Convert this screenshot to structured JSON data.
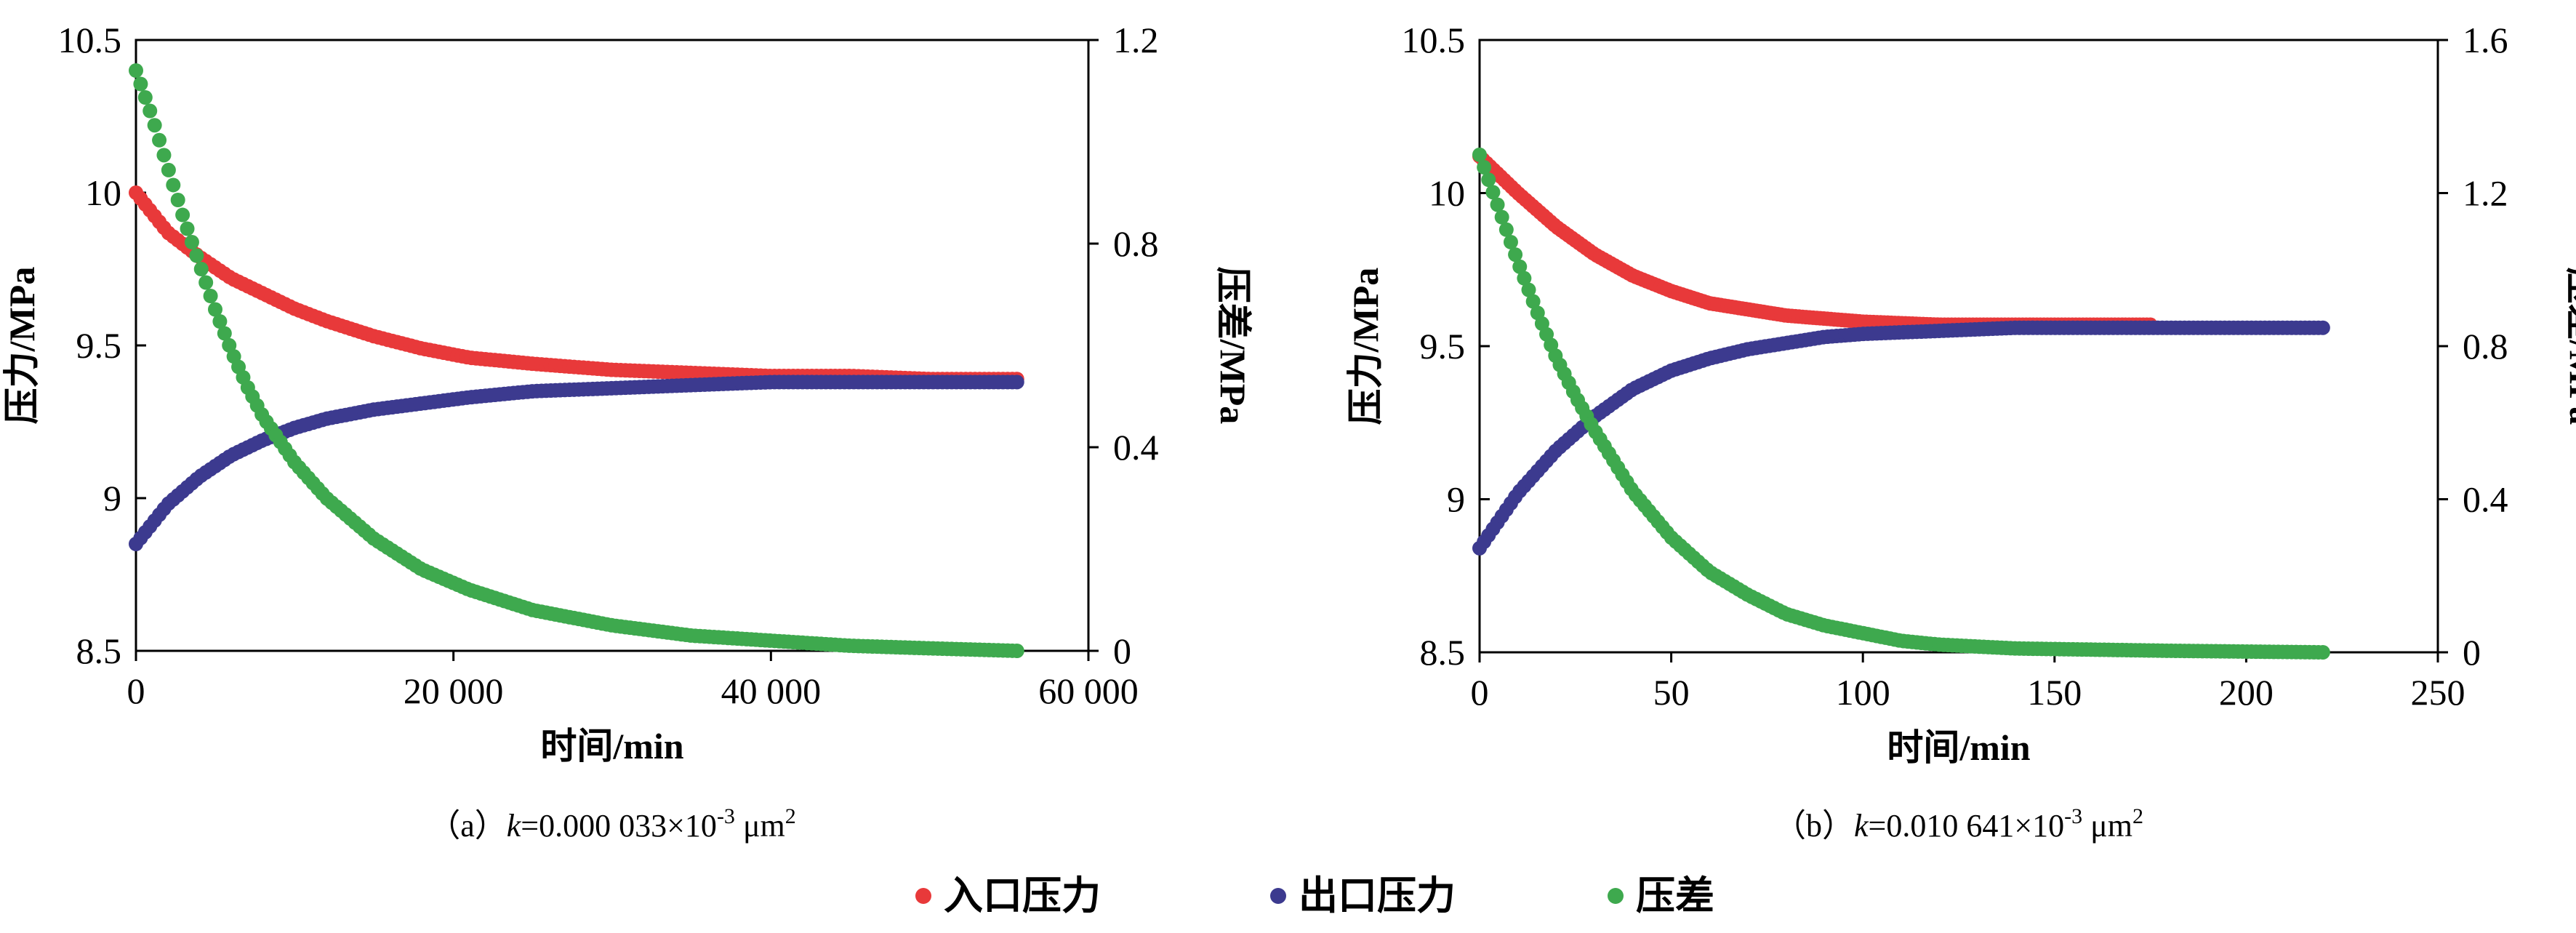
{
  "legend": [
    {
      "label": "入口压力",
      "color": "#E8393A"
    },
    {
      "label": "出口压力",
      "color": "#3C3A8F"
    },
    {
      "label": "压差",
      "color": "#3EA94E"
    }
  ],
  "chart_data": [
    {
      "type": "scatter",
      "caption": {
        "prefix": "（a）",
        "k": "k",
        "value": "=0.000 033×10",
        "exp": "-3",
        "unit": " μm",
        "unit_exp": "2"
      },
      "xlabel": "时间/min",
      "ylabel_left": "压力/MPa",
      "ylabel_right": "压差/MPa",
      "xlim": [
        0,
        60000
      ],
      "ylim_left": [
        8.5,
        10.5
      ],
      "ylim_right": [
        0,
        1.2
      ],
      "x_ticks": [
        0,
        20000,
        40000,
        60000
      ],
      "x_tick_labels": [
        "0",
        "20 000",
        "40 000",
        "60 000"
      ],
      "y_left_ticks": [
        8.5,
        9,
        9.5,
        10,
        10.5
      ],
      "y_left_tick_labels": [
        "8.5",
        "9",
        "9.5",
        "10",
        "10.5"
      ],
      "y_right_ticks": [
        0,
        0.4,
        0.8,
        1.2
      ],
      "y_right_tick_labels": [
        "0",
        "0.4",
        "0.8",
        "1.2"
      ],
      "grid": false,
      "series": [
        {
          "name": "入口压力",
          "axis": "left",
          "color": "#E8393A",
          "x": [
            0,
            2000,
            4000,
            6000,
            8000,
            10000,
            12000,
            15000,
            18000,
            21000,
            25000,
            30000,
            35000,
            40000,
            45000,
            50000,
            55500
          ],
          "y": [
            10.0,
            9.87,
            9.79,
            9.72,
            9.67,
            9.62,
            9.58,
            9.53,
            9.49,
            9.46,
            9.44,
            9.42,
            9.41,
            9.4,
            9.4,
            9.39,
            9.39
          ]
        },
        {
          "name": "出口压力",
          "axis": "left",
          "color": "#3C3A8F",
          "x": [
            0,
            2000,
            4000,
            6000,
            8000,
            10000,
            12000,
            15000,
            18000,
            21000,
            25000,
            30000,
            35000,
            40000,
            45000,
            50000,
            55500
          ],
          "y": [
            8.85,
            8.98,
            9.07,
            9.14,
            9.19,
            9.23,
            9.26,
            9.29,
            9.31,
            9.33,
            9.35,
            9.36,
            9.37,
            9.38,
            9.38,
            9.38,
            9.38
          ]
        },
        {
          "name": "压差",
          "axis": "right",
          "color": "#3EA94E",
          "x": [
            0,
            1000,
            2000,
            3000,
            4000,
            5000,
            6000,
            7000,
            8000,
            10000,
            12000,
            15000,
            18000,
            21000,
            25000,
            30000,
            35000,
            40000,
            45000,
            50000,
            55500
          ],
          "y": [
            1.14,
            1.05,
            0.95,
            0.85,
            0.76,
            0.67,
            0.59,
            0.52,
            0.46,
            0.37,
            0.3,
            0.22,
            0.16,
            0.12,
            0.08,
            0.05,
            0.03,
            0.02,
            0.01,
            0.005,
            0.0
          ]
        }
      ]
    },
    {
      "type": "scatter",
      "caption": {
        "prefix": "（b）",
        "k": "k",
        "value": "=0.010 641×10",
        "exp": "-3",
        "unit": " μm",
        "unit_exp": "2"
      },
      "xlabel": "时间/min",
      "ylabel_left": "压力/MPa",
      "ylabel_right": "压差/MPa",
      "xlim": [
        0,
        250
      ],
      "ylim_left": [
        8.5,
        10.5
      ],
      "ylim_right": [
        0,
        1.6
      ],
      "x_ticks": [
        0,
        50,
        100,
        150,
        200,
        250
      ],
      "x_tick_labels": [
        "0",
        "50",
        "100",
        "150",
        "200",
        "250"
      ],
      "y_left_ticks": [
        8.5,
        9,
        9.5,
        10,
        10.5
      ],
      "y_left_tick_labels": [
        "8.5",
        "9",
        "9.5",
        "10",
        "10.5"
      ],
      "y_right_ticks": [
        0,
        0.4,
        0.8,
        1.2,
        1.6
      ],
      "y_right_tick_labels": [
        "0",
        "0.4",
        "0.8",
        "1.2",
        "1.6"
      ],
      "grid": false,
      "series": [
        {
          "name": "入口压力",
          "axis": "left",
          "color": "#E8393A",
          "x": [
            0,
            10,
            20,
            30,
            40,
            50,
            60,
            70,
            80,
            90,
            100,
            120,
            140,
            160,
            175
          ],
          "y": [
            10.12,
            10.0,
            9.89,
            9.8,
            9.73,
            9.68,
            9.64,
            9.62,
            9.6,
            9.59,
            9.58,
            9.57,
            9.57,
            9.57,
            9.57
          ]
        },
        {
          "name": "出口压力",
          "axis": "left",
          "color": "#3C3A8F",
          "x": [
            0,
            10,
            20,
            30,
            40,
            50,
            60,
            70,
            80,
            90,
            100,
            120,
            140,
            160,
            180,
            200,
            220
          ],
          "y": [
            8.84,
            9.02,
            9.16,
            9.27,
            9.36,
            9.42,
            9.46,
            9.49,
            9.51,
            9.53,
            9.54,
            9.55,
            9.56,
            9.56,
            9.56,
            9.56,
            9.56
          ]
        },
        {
          "name": "压差",
          "axis": "right",
          "color": "#3EA94E",
          "x": [
            0,
            5,
            10,
            15,
            20,
            25,
            30,
            40,
            50,
            60,
            70,
            80,
            90,
            100,
            110,
            120,
            140,
            160,
            180,
            200,
            220
          ],
          "y": [
            1.3,
            1.16,
            1.02,
            0.89,
            0.77,
            0.67,
            0.58,
            0.42,
            0.3,
            0.21,
            0.15,
            0.1,
            0.07,
            0.05,
            0.03,
            0.02,
            0.01,
            0.007,
            0.004,
            0.002,
            0.0
          ]
        }
      ]
    }
  ]
}
